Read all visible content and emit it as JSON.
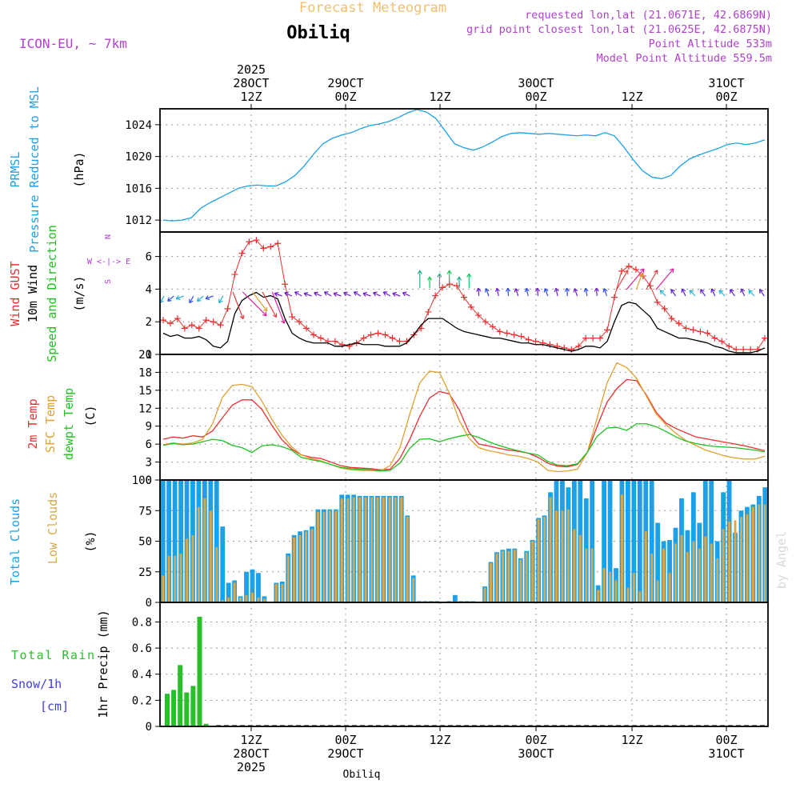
{
  "header": {
    "title": "Forecast Meteogram",
    "station": "Obiliq",
    "model": "ICON-EU, ~ 7km",
    "requested": "requested lon,lat (21.0671E, 42.6869N)",
    "grid_point": "grid point closest lon,lat (21.0625E, 42.6875N)",
    "point_altitude": "Point Altitude 533m",
    "model_altitude": "Model Point Altitude 559.5m",
    "watermark": "by Angel",
    "footer_station": "Obiliq"
  },
  "colors": {
    "pressure": "#1ca0e8",
    "gust": "#e83030",
    "wind": "#000000",
    "temp2m": "#e83030",
    "sfc": "#e0a030",
    "dewpt": "#20c020",
    "total_clouds": "#1ca0e8",
    "low_clouds": "#d8a848",
    "rain": "#28c028",
    "snow": "#4040e0",
    "label_purple": "#b040d0",
    "title_orange": "#f0c070"
  },
  "chart_data": [
    {
      "type": "line",
      "name": "pressure",
      "ylabel_lines": [
        "PRMSL",
        "Pressure Reduced to MSL"
      ],
      "unit": "(hPa)",
      "ylim": [
        1010.5,
        1026
      ],
      "yticks": [
        1012,
        1016,
        1020,
        1024
      ],
      "x": [
        0,
        1,
        2,
        3,
        4,
        5,
        6,
        7,
        8,
        9,
        10,
        11,
        12,
        13,
        14,
        15,
        16,
        17,
        18,
        19,
        20,
        21,
        22,
        23,
        24,
        25,
        26,
        27,
        28,
        29,
        30,
        31,
        32,
        33,
        34,
        35,
        36,
        37,
        38,
        39,
        40,
        41,
        42,
        43,
        44,
        45,
        46,
        47,
        48,
        49,
        50,
        51,
        52,
        53,
        54,
        55,
        56,
        57,
        58,
        59,
        60,
        61,
        62,
        63,
        64
      ],
      "values": [
        1012.0,
        1011.9,
        1012.0,
        1012.3,
        1013.5,
        1014.2,
        1014.8,
        1015.4,
        1016.0,
        1016.3,
        1016.4,
        1016.3,
        1016.3,
        1016.8,
        1017.6,
        1018.8,
        1020.3,
        1021.6,
        1022.3,
        1022.7,
        1023.0,
        1023.5,
        1023.9,
        1024.1,
        1024.4,
        1024.9,
        1025.5,
        1025.9,
        1025.6,
        1024.8,
        1023.2,
        1021.6,
        1021.1,
        1020.8,
        1021.2,
        1021.8,
        1022.5,
        1022.9,
        1023.0,
        1022.9,
        1022.8,
        1022.9,
        1022.8,
        1022.7,
        1022.6,
        1022.7,
        1022.6,
        1023.0,
        1022.6,
        1021.2,
        1019.6,
        1018.2,
        1017.4,
        1017.2,
        1017.6,
        1018.8,
        1019.7,
        1020.2,
        1020.6,
        1021.0,
        1021.5,
        1021.7,
        1021.5,
        1021.7,
        1022.1
      ]
    },
    {
      "type": "line",
      "name": "wind",
      "ylabel_lines": [
        "Wind GUST",
        "10m Wind",
        "Speed and Direction"
      ],
      "unit": "(m/s)",
      "compass": [
        "N",
        "W <-|-> E",
        "S"
      ],
      "ylim": [
        0,
        7.5
      ],
      "yticks": [
        0,
        2,
        4,
        6
      ],
      "series": [
        {
          "name": "Wind GUST",
          "values": [
            2.1,
            1.9,
            2.2,
            1.6,
            1.8,
            1.6,
            2.1,
            2.0,
            1.8,
            2.8,
            4.9,
            6.2,
            6.9,
            7.0,
            6.5,
            6.6,
            6.8,
            4.3,
            2.3,
            2.0,
            1.6,
            1.2,
            1.0,
            0.8,
            0.8,
            0.6,
            0.5,
            0.7,
            1.0,
            1.2,
            1.3,
            1.2,
            1.0,
            0.8,
            0.8,
            1.2,
            1.6,
            2.6,
            3.6,
            4.1,
            4.3,
            4.2,
            3.5,
            2.9,
            2.4,
            2.0,
            1.7,
            1.4,
            1.3,
            1.2,
            1.1,
            0.9,
            0.8,
            0.7,
            0.6,
            0.5,
            0.4,
            0.3,
            0.5,
            1.0,
            1.0,
            1.0,
            1.5,
            3.5,
            5.1,
            5.4,
            5.2,
            4.8,
            4.2,
            3.2,
            2.8,
            2.2,
            1.9,
            1.6,
            1.5,
            1.4,
            1.3,
            1.0,
            0.8,
            0.5,
            0.3,
            0.3,
            0.3,
            0.3,
            1.0
          ]
        },
        {
          "name": "10m Wind",
          "values": [
            1.3,
            1.1,
            1.2,
            1.0,
            1.0,
            1.1,
            0.9,
            0.5,
            0.4,
            0.8,
            2.5,
            3.3,
            3.6,
            3.8,
            3.5,
            3.6,
            3.4,
            2.2,
            1.3,
            1.0,
            0.8,
            0.7,
            0.7,
            0.7,
            0.5,
            0.5,
            0.6,
            0.7,
            0.6,
            0.6,
            0.6,
            0.5,
            0.5,
            0.5,
            0.7,
            1.2,
            1.8,
            2.2,
            2.2,
            2.2,
            1.9,
            1.6,
            1.4,
            1.3,
            1.2,
            1.1,
            1.0,
            1.0,
            0.9,
            0.8,
            0.7,
            0.7,
            0.6,
            0.6,
            0.5,
            0.4,
            0.3,
            0.2,
            0.3,
            0.5,
            0.5,
            0.4,
            0.8,
            2.0,
            3.0,
            3.2,
            3.1,
            2.7,
            2.3,
            1.6,
            1.4,
            1.2,
            1.0,
            1.0,
            0.9,
            0.8,
            0.7,
            0.5,
            0.4,
            0.2,
            0.1,
            0.1,
            0.1,
            0.2,
            0.4
          ]
        }
      ],
      "arrows_gust_peak": "high wind around 28OCT 12Z"
    },
    {
      "type": "line",
      "name": "temperature",
      "ylabel_lines": [
        "2m Temp",
        "SFC Temp",
        "dewpt Temp"
      ],
      "unit": "(C)",
      "ylim": [
        0,
        21
      ],
      "yticks": [
        0,
        3,
        6,
        9,
        12,
        15,
        18,
        21
      ],
      "series": [
        {
          "name": "2m Temp",
          "values": [
            6.8,
            7.2,
            7.0,
            7.4,
            7.2,
            8.2,
            10.4,
            12.5,
            13.4,
            13.4,
            11.8,
            9.2,
            6.8,
            5.2,
            4.2,
            3.8,
            3.6,
            3.0,
            2.4,
            2.1,
            2.0,
            1.9,
            1.7,
            1.8,
            3.6,
            6.8,
            10.6,
            13.7,
            14.8,
            14.4,
            11.8,
            8.0,
            6.0,
            5.7,
            5.3,
            5.0,
            4.8,
            4.5,
            3.8,
            2.8,
            2.3,
            2.2,
            2.6,
            4.6,
            9.0,
            13.0,
            15.3,
            16.8,
            16.6,
            14.2,
            11.3,
            9.5,
            8.6,
            7.9,
            7.2,
            6.9,
            6.6,
            6.3,
            6.0,
            5.7,
            5.3,
            4.9
          ]
        },
        {
          "name": "SFC Temp",
          "values": [
            5.9,
            6.2,
            6.0,
            6.2,
            6.8,
            9.4,
            13.8,
            15.8,
            16.0,
            15.6,
            13.2,
            10.2,
            7.6,
            5.6,
            4.2,
            3.6,
            3.2,
            2.6,
            2.0,
            1.7,
            1.6,
            1.6,
            1.5,
            2.4,
            5.4,
            11.0,
            16.2,
            18.2,
            18.0,
            14.6,
            10.0,
            7.0,
            5.4,
            4.9,
            4.6,
            4.2,
            4.0,
            3.6,
            3.0,
            1.6,
            1.4,
            1.5,
            1.8,
            4.6,
            10.4,
            16.2,
            19.6,
            18.8,
            17.0,
            14.0,
            11.0,
            9.2,
            7.8,
            6.6,
            5.8,
            5.0,
            4.5,
            4.0,
            3.7,
            3.5,
            3.5,
            4.0
          ]
        },
        {
          "name": "dewpt Temp",
          "values": [
            5.8,
            6.1,
            5.9,
            6.0,
            6.4,
            6.8,
            6.6,
            5.8,
            5.4,
            4.6,
            5.7,
            5.9,
            5.6,
            5.0,
            3.8,
            3.4,
            3.1,
            2.6,
            2.1,
            1.9,
            1.8,
            1.7,
            1.5,
            1.6,
            2.8,
            5.3,
            6.8,
            6.9,
            6.4,
            6.9,
            7.3,
            7.6,
            7.1,
            6.4,
            5.8,
            5.3,
            4.9,
            4.5,
            4.2,
            3.1,
            2.5,
            2.4,
            2.7,
            4.6,
            7.3,
            8.7,
            8.8,
            8.3,
            9.4,
            9.4,
            8.9,
            8.1,
            7.2,
            6.5,
            6.1,
            5.8,
            5.6,
            5.5,
            5.4,
            5.2,
            5.0,
            4.7
          ]
        }
      ]
    },
    {
      "type": "bar",
      "name": "clouds",
      "ylabel_lines": [
        "Total Clouds",
        "Low Clouds"
      ],
      "unit": "(%)",
      "ylim": [
        0,
        100
      ],
      "yticks": [
        0,
        25,
        50,
        75,
        100
      ],
      "series": [
        {
          "name": "Total Clouds",
          "values": [
            100,
            100,
            100,
            100,
            100,
            100,
            100,
            100,
            100,
            100,
            62,
            16,
            18,
            5,
            25,
            27,
            24,
            5,
            0,
            16,
            17,
            40,
            55,
            58,
            59,
            62,
            76,
            76,
            76,
            76,
            88,
            88,
            88,
            87,
            87,
            87,
            87,
            87,
            87,
            87,
            87,
            71,
            22,
            1,
            1,
            1,
            1,
            0,
            1,
            6,
            1,
            1,
            1,
            0,
            13,
            33,
            41,
            43,
            44,
            44,
            36,
            42,
            51,
            69,
            71,
            90,
            100,
            100,
            94,
            100,
            100,
            85,
            100,
            14,
            100,
            100,
            28,
            100,
            100,
            100,
            100,
            100,
            100,
            65,
            50,
            51,
            61,
            85,
            59,
            90,
            65,
            100,
            100,
            50,
            90,
            100,
            57,
            75,
            78,
            80,
            87,
            94
          ]
        },
        {
          "name": "Low Clouds",
          "values": [
            22,
            38,
            38,
            40,
            52,
            55,
            78,
            85,
            75,
            45,
            2,
            4,
            16,
            4,
            6,
            8,
            4,
            3,
            0,
            15,
            15,
            38,
            53,
            55,
            58,
            60,
            74,
            74,
            75,
            75,
            85,
            85,
            86,
            86,
            86,
            86,
            86,
            86,
            86,
            86,
            86,
            70,
            20,
            0,
            0,
            0,
            0,
            0,
            0,
            0,
            0,
            0,
            0,
            0,
            12,
            32,
            40,
            42,
            42,
            43,
            35,
            41,
            50,
            68,
            70,
            86,
            75,
            75,
            76,
            60,
            55,
            44,
            44,
            10,
            28,
            25,
            18,
            88,
            12,
            24,
            9,
            58,
            40,
            18,
            44,
            24,
            48,
            55,
            41,
            50,
            44,
            54,
            48,
            36,
            60,
            66,
            67,
            70,
            72,
            78,
            80,
            80
          ]
        }
      ]
    },
    {
      "type": "bar",
      "name": "precip",
      "ylabel_lines": [
        "Total Rain",
        "Snow/1h",
        "[cm]"
      ],
      "unit": "1hr Precip (mm)",
      "ylim": [
        0,
        0.95
      ],
      "yticks": [
        0,
        0.2,
        0.4,
        0.6,
        0.8
      ],
      "ytick_labels": [
        "0",
        "0.2",
        "0.4",
        "0.6",
        "0.8"
      ],
      "series": [
        {
          "name": "Total Rain",
          "values": [
            0.25,
            0.28,
            0.47,
            0.26,
            0.31,
            0.84,
            0.02
          ]
        }
      ]
    }
  ],
  "time_axis": {
    "top": [
      {
        "line1": "2025",
        "line2": "28OCT",
        "line3": "12Z"
      },
      {
        "line1": "",
        "line2": "29OCT",
        "line3": "00Z"
      },
      {
        "line1": "",
        "line2": "",
        "line3": "12Z"
      },
      {
        "line1": "",
        "line2": "30OCT",
        "line3": "00Z"
      },
      {
        "line1": "",
        "line2": "",
        "line3": "12Z"
      },
      {
        "line1": "",
        "line2": "31OCT",
        "line3": "00Z"
      }
    ],
    "bottom": [
      {
        "line1": "12Z",
        "line2": "28OCT",
        "line3": "2025"
      },
      {
        "line1": "00Z",
        "line2": "29OCT",
        "line3": ""
      },
      {
        "line1": "12Z",
        "line2": "",
        "line3": ""
      },
      {
        "line1": "00Z",
        "line2": "30OCT",
        "line3": ""
      },
      {
        "line1": "12Z",
        "line2": "",
        "line3": ""
      },
      {
        "line1": "00Z",
        "line2": "31OCT",
        "line3": ""
      }
    ]
  }
}
